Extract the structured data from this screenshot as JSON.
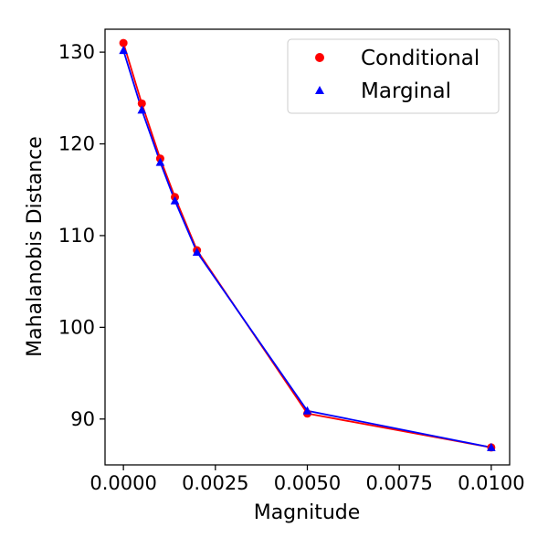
{
  "chart_data": {
    "type": "line",
    "title": "",
    "xlabel": "Magnitude",
    "ylabel": "Mahalanobis Distance",
    "xlim": [
      -0.0005,
      0.0105
    ],
    "ylim": [
      85,
      132.5
    ],
    "grid": false,
    "legend_position": "top-right",
    "x": [
      0.0,
      0.0005,
      0.001,
      0.0014,
      0.002,
      0.005,
      0.01
    ],
    "xticks": [
      {
        "value": 0.0,
        "label": "0.0000"
      },
      {
        "value": 0.0025,
        "label": "0.0025"
      },
      {
        "value": 0.005,
        "label": "0.0050"
      },
      {
        "value": 0.0075,
        "label": "0.0075"
      },
      {
        "value": 0.01,
        "label": "0.0100"
      }
    ],
    "yticks": [
      {
        "value": 90,
        "label": "90"
      },
      {
        "value": 100,
        "label": "100"
      },
      {
        "value": 110,
        "label": "110"
      },
      {
        "value": 120,
        "label": "120"
      },
      {
        "value": 130,
        "label": "130"
      }
    ],
    "series": [
      {
        "name": "Conditional",
        "marker": "circle",
        "color": "#ff0000",
        "values": [
          131.0,
          124.4,
          118.4,
          114.2,
          108.4,
          90.6,
          86.9
        ]
      },
      {
        "name": "Marginal",
        "marker": "triangle",
        "color": "#0000ff",
        "values": [
          130.2,
          123.7,
          118.0,
          113.8,
          108.2,
          90.9,
          86.9
        ]
      }
    ]
  }
}
